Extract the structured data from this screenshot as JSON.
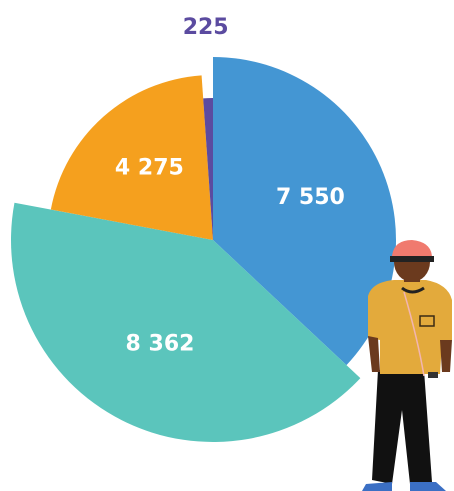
{
  "chart_data": {
    "type": "pie",
    "values": [
      7550,
      8362,
      4275,
      225
    ],
    "value_labels": [
      "7 550",
      "8 362",
      "4 275",
      "225"
    ],
    "colors": [
      "#4496d3",
      "#5bc5bc",
      "#f5a01e",
      "#5b4ba0"
    ]
  }
}
